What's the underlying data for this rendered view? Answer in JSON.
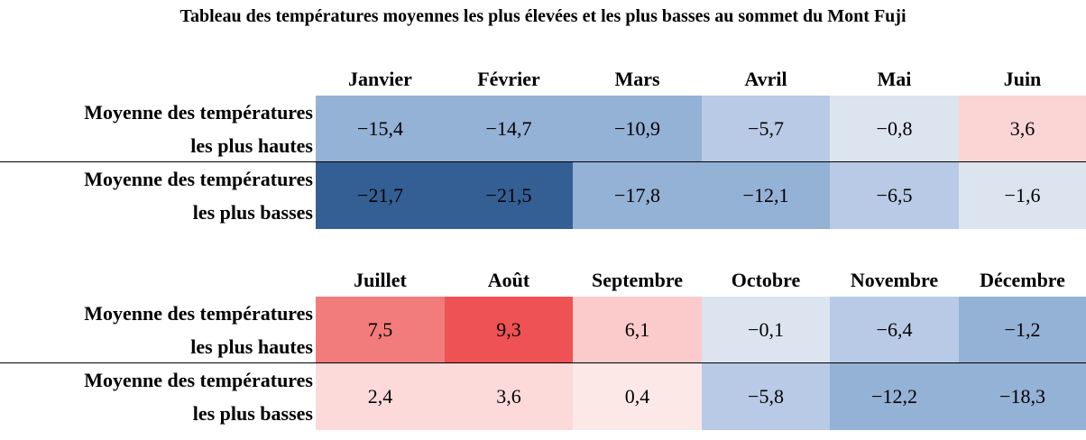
{
  "title": "Tableau des températures moyennes les plus élevées et les plus basses au sommet du Mont Fuji",
  "row_labels": {
    "high": [
      "Moyenne des températures",
      "les plus hautes"
    ],
    "low": [
      "Moyenne des températures",
      "les plus basses"
    ]
  },
  "chart_data": {
    "type": "heatmap",
    "title": "Tableau des températures moyennes les plus élevées et les plus basses au sommet du Mont Fuji",
    "categories": [
      "Janvier",
      "Février",
      "Mars",
      "Avril",
      "Mai",
      "Juin",
      "Juillet",
      "Août",
      "Septembre",
      "Octobre",
      "Novembre",
      "Décembre"
    ],
    "series": [
      {
        "name": "Moyenne des températures les plus hautes",
        "values": [
          -15.4,
          -14.7,
          -10.9,
          -5.7,
          -0.8,
          3.6,
          7.5,
          9.3,
          6.1,
          -0.1,
          -6.4,
          -1.2
        ],
        "labels": [
          "−15,4",
          "−14,7",
          "−10,9",
          "−5,7",
          "−0,8",
          "3,6",
          "7,5",
          "9,3",
          "6,1",
          "−0,1",
          "−6,4",
          "−1,2"
        ],
        "colors": [
          "#94b1d6",
          "#94b1d6",
          "#94b1d6",
          "#b8cae5",
          "#dce4f0",
          "#fbd5d4",
          "#f27b7b",
          "#ef5254",
          "#fbcbcb",
          "#dce4f0",
          "#b8cae5",
          "#94b1d6"
        ]
      },
      {
        "name": "Moyenne des températures les plus basses",
        "values": [
          -21.7,
          -21.5,
          -17.8,
          -12.1,
          -6.5,
          -1.6,
          2.4,
          3.6,
          0.4,
          -5.8,
          -12.2,
          -18.3
        ],
        "labels": [
          "−21,7",
          "−21,5",
          "−17,8",
          "−12,1",
          "−6,5",
          "−1,6",
          "2,4",
          "3,6",
          "0,4",
          "−5,8",
          "−12,2",
          "−18,3"
        ],
        "colors": [
          "#345f94",
          "#345f94",
          "#94b1d6",
          "#94b1d6",
          "#b8cae5",
          "#dce4f0",
          "#fcdada",
          "#fcdada",
          "#fde8e8",
          "#b8cae5",
          "#94b1d6",
          "#94b1d6"
        ]
      }
    ]
  }
}
